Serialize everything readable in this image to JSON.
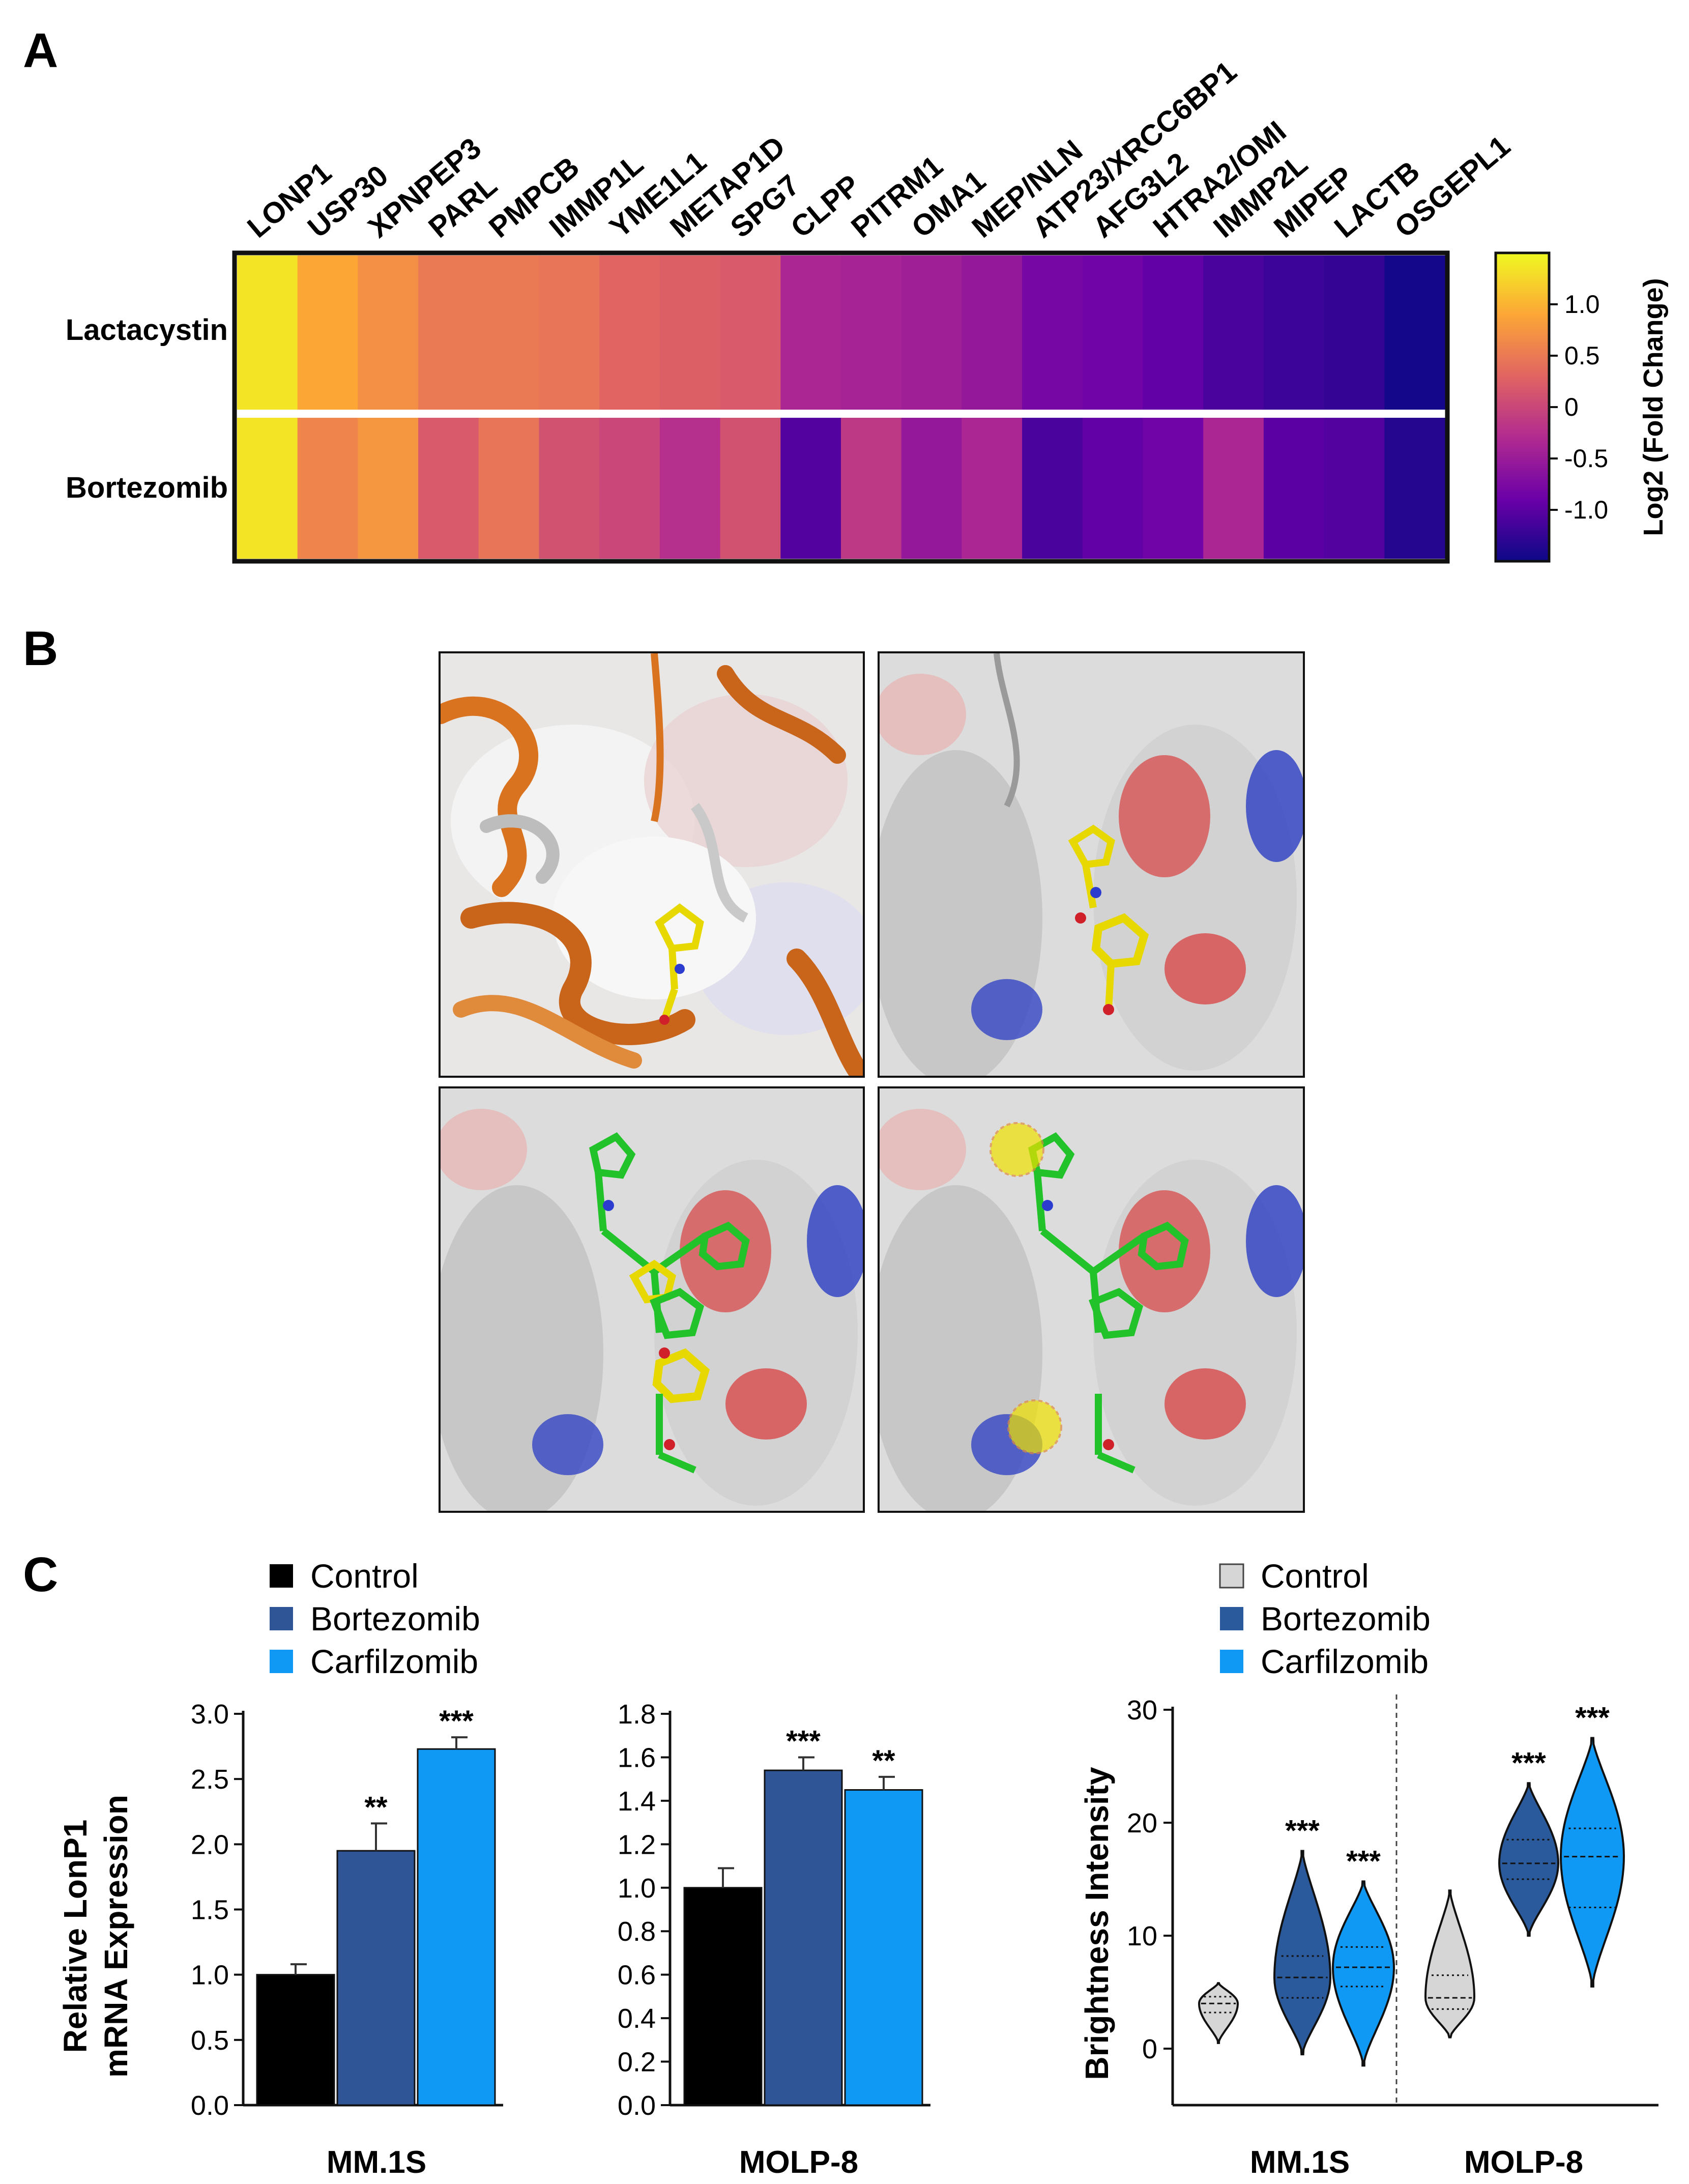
{
  "panels": {
    "a": "A",
    "b": "B",
    "c": "C"
  },
  "heatmap": {
    "genes": [
      "LONP1",
      "USP30",
      "XPNPEP3",
      "PARL",
      "PMPCB",
      "IMMP1L",
      "YME1L1",
      "METAP1D",
      "SPG7",
      "CLPP",
      "PITRM1",
      "OMA1",
      "MEP/NLN",
      "ATP23/XRCC6BP1",
      "AFG3L2",
      "HTRA2/OMI",
      "IMMP2L",
      "MIPEP",
      "LACTB",
      "OSGEPL1"
    ],
    "rows": [
      {
        "label": "Lactacystin",
        "values": [
          1.35,
          0.9,
          0.7,
          0.5,
          0.5,
          0.45,
          0.3,
          0.25,
          0.2,
          -0.35,
          -0.4,
          -0.45,
          -0.55,
          -0.8,
          -0.85,
          -0.95,
          -1.1,
          -1.2,
          -1.25,
          -1.45
        ]
      },
      {
        "label": "Bortezomib",
        "values": [
          1.35,
          0.6,
          0.75,
          0.2,
          0.45,
          0.1,
          0.0,
          -0.25,
          0.1,
          -1.05,
          -0.15,
          -0.55,
          -0.35,
          -1.1,
          -0.95,
          -0.85,
          -0.35,
          -1.0,
          -1.05,
          -1.35
        ]
      }
    ],
    "colorbar": {
      "label": "Log2 (Fold Change)",
      "ticks": [
        "1.0",
        "0.5",
        "0",
        "-0.5",
        "-1.0"
      ],
      "tick_values": [
        1.0,
        0.5,
        0,
        -0.5,
        -1.0
      ],
      "range": [
        -1.5,
        1.5
      ],
      "colors": [
        "#0d0887",
        "#6a00a8",
        "#b12a90",
        "#e16462",
        "#fca636",
        "#f0f921"
      ]
    }
  },
  "legends": {
    "bar_chart": {
      "items": [
        {
          "label": "Control",
          "color": "#000000"
        },
        {
          "label": "Bortezomib",
          "color": "#2f5597"
        },
        {
          "label": "Carfilzomib",
          "color": "#0f99f5"
        }
      ]
    },
    "violin_chart": {
      "items": [
        {
          "label": "Control",
          "color": "#d6d6d6"
        },
        {
          "label": "Bortezomib",
          "color": "#2b5a9c"
        },
        {
          "label": "Carfilzomib",
          "color": "#0f99f5"
        }
      ]
    }
  },
  "chart_data": [
    {
      "type": "bar",
      "title": "",
      "xlabel": "MM.1S",
      "ylabel": "Relative LonP1 mRNA Expression",
      "ylim": [
        0,
        3.0
      ],
      "yticks": [
        "0.0",
        "0.5",
        "1.0",
        "1.5",
        "2.0",
        "2.5",
        "3.0"
      ],
      "categories": [
        "Control",
        "Bortezomib",
        "Carfilzomib"
      ],
      "values": [
        1.0,
        1.95,
        2.73
      ],
      "errors": [
        0.08,
        0.21,
        0.09
      ],
      "significance": [
        "",
        "**",
        "***"
      ]
    },
    {
      "type": "bar",
      "title": "",
      "xlabel": "MOLP-8",
      "ylabel": "",
      "ylim": [
        0,
        1.8
      ],
      "yticks": [
        "0.0",
        "0.2",
        "0.4",
        "0.6",
        "0.8",
        "1.0",
        "1.2",
        "1.4",
        "1.6",
        "1.8"
      ],
      "categories": [
        "Control",
        "Bortezomib",
        "Carfilzomib"
      ],
      "values": [
        1.0,
        1.54,
        1.45
      ],
      "errors": [
        0.09,
        0.06,
        0.06
      ],
      "significance": [
        "",
        "***",
        "**"
      ]
    },
    {
      "type": "violin",
      "title": "",
      "ylabel": "Brightness Intensity",
      "ylim": [
        -5,
        30
      ],
      "yticks": [
        "0",
        "10",
        "20",
        "30"
      ],
      "groups": [
        "MM.1S",
        "MOLP-8"
      ],
      "series": [
        {
          "group": "MM.1S",
          "name": "Control",
          "median": 4.0,
          "q1": 3.2,
          "q3": 4.6,
          "min": 0.5,
          "max": 5.8,
          "significance": ""
        },
        {
          "group": "MM.1S",
          "name": "Bortezomib",
          "median": 6.3,
          "q1": 4.5,
          "q3": 8.2,
          "min": -0.5,
          "max": 17.5,
          "significance": "***"
        },
        {
          "group": "MM.1S",
          "name": "Carfilzomib",
          "median": 7.2,
          "q1": 5.5,
          "q3": 9.0,
          "min": -1.5,
          "max": 14.8,
          "significance": "***"
        },
        {
          "group": "MOLP-8",
          "name": "Control",
          "median": 4.5,
          "q1": 3.5,
          "q3": 6.5,
          "min": 1.0,
          "max": 14.0,
          "significance": ""
        },
        {
          "group": "MOLP-8",
          "name": "Bortezomib",
          "median": 16.4,
          "q1": 15.0,
          "q3": 18.5,
          "min": 10.0,
          "max": 23.5,
          "significance": "***"
        },
        {
          "group": "MOLP-8",
          "name": "Carfilzomib",
          "median": 17.0,
          "q1": 12.5,
          "q3": 19.5,
          "min": 5.5,
          "max": 27.5,
          "significance": "***"
        }
      ]
    }
  ]
}
